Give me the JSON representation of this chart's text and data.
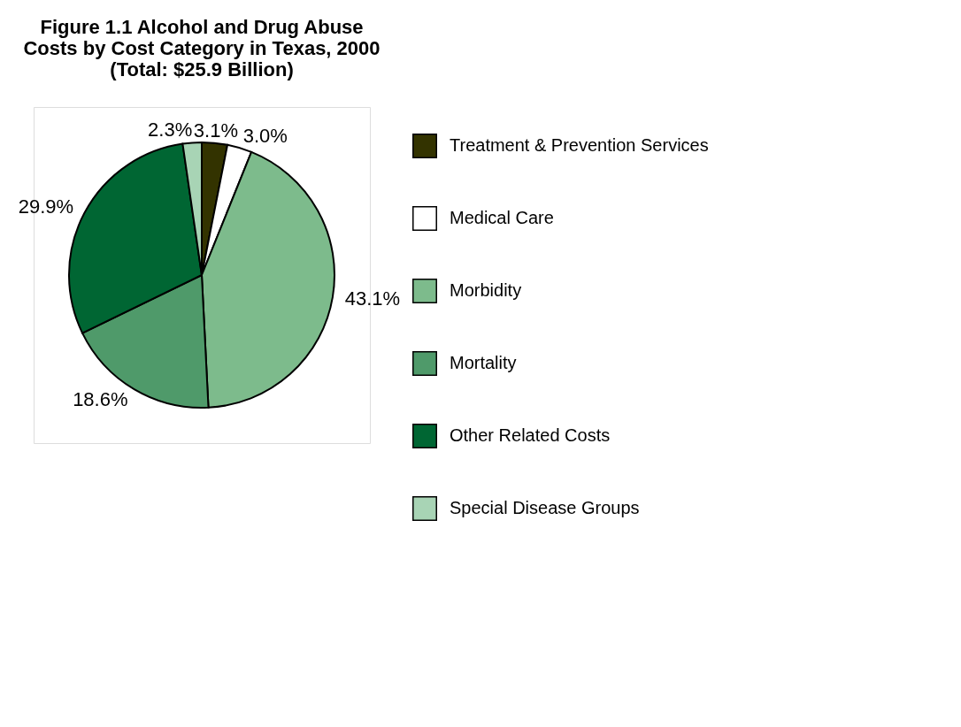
{
  "chart_data": {
    "type": "pie",
    "title": [
      "Figure 1.1 Alcohol and Drug Abuse",
      "Costs by Cost Category in Texas, 2000",
      "(Total: $25.9 Billion)"
    ],
    "categories": [
      "Treatment & Prevention Services",
      "Medical Care",
      "Morbidity",
      "Mortality",
      "Other Related Costs",
      "Special Disease Groups"
    ],
    "values": [
      3.1,
      3.0,
      43.1,
      18.6,
      29.9,
      2.3
    ],
    "value_labels": [
      "3.1%",
      "3.0%",
      "43.1%",
      "18.6%",
      "29.9%",
      "2.3%"
    ],
    "colors": [
      "#333300",
      "#ffffff",
      "#7dbb8c",
      "#4f9a6a",
      "#006633",
      "#a8d4b5"
    ],
    "legend": "right"
  }
}
